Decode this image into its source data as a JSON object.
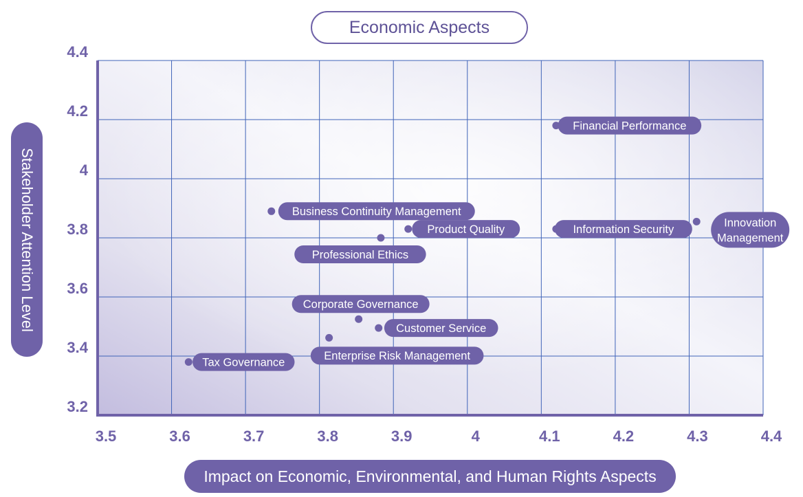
{
  "title": "Economic Aspects",
  "chart_data": {
    "type": "scatter",
    "title": "Economic Aspects",
    "xlabel": "Impact on Economic, Environmental, and Human Rights Aspects",
    "ylabel": "Stakeholder Attention Level",
    "xlim": [
      3.5,
      4.4
    ],
    "ylim": [
      3.2,
      4.4
    ],
    "x_ticks": [
      "3.5",
      "3.6",
      "3.7",
      "3.8",
      "3.9",
      "4",
      "4.1",
      "4.2",
      "4.3",
      "4.4"
    ],
    "y_ticks": [
      "3.2",
      "3.4",
      "3.6",
      "3.8",
      "4",
      "4.2",
      "4.4"
    ],
    "grid": true,
    "colors": {
      "accent": "#6f62a8",
      "grid": "#3f63b8",
      "axis": "#6f62a8"
    },
    "points": [
      {
        "label": "Financial Performance",
        "x": 4.12,
        "y": 4.18
      },
      {
        "label": "Business Continuity Management",
        "x": 3.735,
        "y": 3.89
      },
      {
        "label": "Product Quality",
        "x": 3.92,
        "y": 3.83
      },
      {
        "label": "Information Security",
        "x": 4.12,
        "y": 3.83
      },
      {
        "label": "Innovation Management",
        "x": 4.31,
        "y": 3.855
      },
      {
        "label": "Professional Ethics",
        "x": 3.883,
        "y": 3.8
      },
      {
        "label": "Corporate Governance",
        "x": 3.853,
        "y": 3.525
      },
      {
        "label": "Customer Service",
        "x": 3.88,
        "y": 3.495
      },
      {
        "label": "Enterprise Risk Management",
        "x": 3.813,
        "y": 3.462
      },
      {
        "label": "Tax Governance",
        "x": 3.623,
        "y": 3.38
      }
    ]
  }
}
